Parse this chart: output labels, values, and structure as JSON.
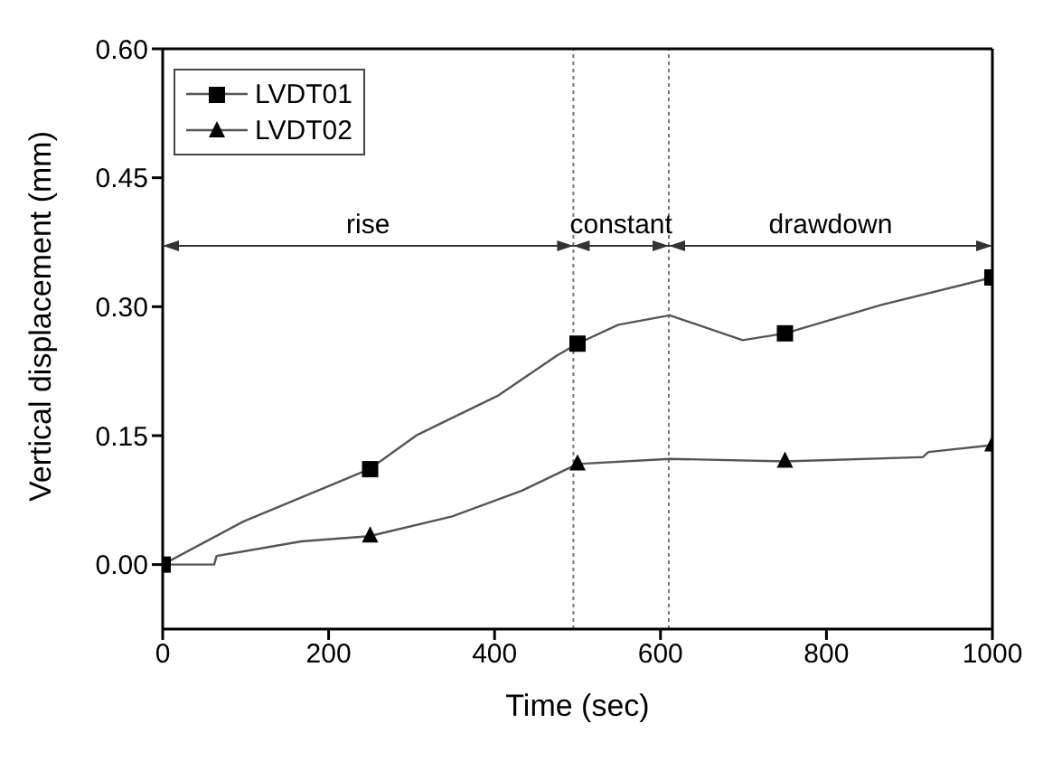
{
  "chart_data": {
    "type": "line",
    "xlabel": "Time (sec)",
    "ylabel": "Vertical displacement (mm)",
    "xlim": [
      0,
      1000
    ],
    "xticks": [
      0,
      200,
      400,
      600,
      800,
      1000
    ],
    "ylim": [
      -0.075,
      0.6
    ],
    "yticks": [
      {
        "value": 0,
        "label": "0.00"
      },
      {
        "value": 0.15,
        "label": "0.15"
      },
      {
        "value": 0.3,
        "label": "0.30"
      },
      {
        "value": 0.45,
        "label": "0.45"
      },
      {
        "value": 0.6,
        "label": "0.60"
      }
    ],
    "series": [
      {
        "name": "LVDT01",
        "color": "#555555",
        "x": [
          0,
          97,
          249,
          307,
          405,
          475,
          500,
          549,
          611,
          699,
          750,
          866,
          1000
        ],
        "values": [
          0,
          0.05,
          0.111,
          0.151,
          0.197,
          0.243,
          0.257,
          0.279,
          0.29,
          0.261,
          0.269,
          0.302,
          0.334
        ]
      },
      {
        "name": "LVDT02",
        "color": "#555555",
        "x": [
          0,
          62,
          65,
          167,
          249,
          349,
          433,
          500,
          611,
          750,
          916,
          923,
          1000
        ],
        "values": [
          0,
          0,
          0.01,
          0.027,
          0.033,
          0.056,
          0.086,
          0.117,
          0.123,
          0.12,
          0.125,
          0.131,
          0.139
        ]
      },
      {
        "type": "scatter",
        "color": "#000000",
        "marker": "square",
        "x": [
          0,
          250,
          500,
          750,
          1000
        ],
        "values": [
          0,
          0.111,
          0.257,
          0.269,
          0.334
        ]
      },
      {
        "type": "scatter",
        "color": "#000000",
        "marker": "triangle",
        "x": [
          250,
          500,
          750,
          1000
        ],
        "values": [
          0.033,
          0.117,
          0.12,
          0.139
        ]
      }
    ],
    "ref_lines": [
      {
        "axis": "x",
        "value": 495,
        "line_style": "dotted",
        "color": "#777777"
      },
      {
        "axis": "x",
        "value": 610,
        "line_style": "dotted",
        "color": "#777777"
      }
    ],
    "annotations": [
      "rise",
      "constant",
      "drawdown"
    ],
    "legend": "top left"
  }
}
